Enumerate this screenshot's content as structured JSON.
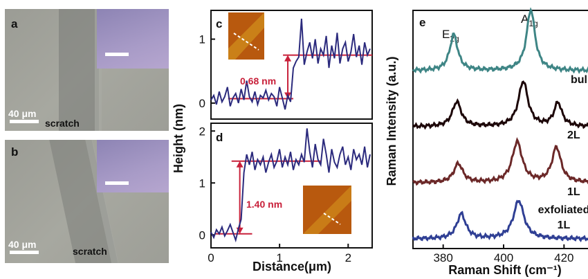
{
  "panel_a": {
    "label": "a",
    "scalebar": "40 μm",
    "caption": "scratch"
  },
  "panel_b": {
    "label": "b",
    "scalebar": "40 μm",
    "caption": "scratch"
  },
  "chart_data": [
    {
      "type": "line",
      "panel": "c",
      "ylabel": "Height (nm)",
      "xlim": [
        0,
        2.35
      ],
      "ylim": [
        -0.25,
        1.45
      ],
      "yticks": [
        0,
        1
      ],
      "annotation": "0.68 nm",
      "levels": [
        0.07,
        0.75
      ],
      "series_color": "#2b2a7d",
      "x": [
        0.0,
        0.04,
        0.08,
        0.12,
        0.16,
        0.2,
        0.24,
        0.28,
        0.32,
        0.36,
        0.4,
        0.44,
        0.48,
        0.52,
        0.56,
        0.6,
        0.64,
        0.68,
        0.72,
        0.76,
        0.8,
        0.84,
        0.88,
        0.92,
        0.96,
        1.0,
        1.04,
        1.08,
        1.12,
        1.16,
        1.2,
        1.24,
        1.28,
        1.32,
        1.36,
        1.4,
        1.44,
        1.48,
        1.52,
        1.56,
        1.6,
        1.64,
        1.68,
        1.72,
        1.76,
        1.8,
        1.84,
        1.88,
        1.92,
        1.96,
        2.0,
        2.04,
        2.08,
        2.12,
        2.16,
        2.2,
        2.24,
        2.28,
        2.32
      ],
      "y": [
        0.05,
        0.12,
        -0.02,
        0.18,
        0.02,
        0.1,
        0.25,
        -0.05,
        0.08,
        0.15,
        0.0,
        0.22,
        0.05,
        0.35,
        0.1,
        0.02,
        0.18,
        -0.02,
        0.12,
        0.08,
        0.2,
        0.05,
        0.15,
        0.1,
        -0.05,
        0.25,
        0.08,
        -0.1,
        0.12,
        0.02,
        0.55,
        0.65,
        0.72,
        1.32,
        0.6,
        0.8,
        0.95,
        0.7,
        1.0,
        0.62,
        0.85,
        0.75,
        1.05,
        0.55,
        0.9,
        0.7,
        1.1,
        0.62,
        0.85,
        0.95,
        0.65,
        0.8,
        1.08,
        0.72,
        0.9,
        0.6,
        0.95,
        0.75,
        0.85
      ]
    },
    {
      "type": "line",
      "panel": "d",
      "ylabel": "Height (nm)",
      "xlabel": "Distance(μm)",
      "xlim": [
        0,
        2.35
      ],
      "ylim": [
        -0.25,
        2.15
      ],
      "xticks": [
        0,
        1,
        2
      ],
      "yticks": [
        0,
        1,
        2
      ],
      "annotation": "1.40 nm",
      "levels": [
        0.02,
        1.42
      ],
      "series_color": "#2b2a7d",
      "x": [
        0.0,
        0.04,
        0.08,
        0.12,
        0.16,
        0.2,
        0.24,
        0.28,
        0.32,
        0.36,
        0.4,
        0.44,
        0.48,
        0.52,
        0.56,
        0.6,
        0.64,
        0.68,
        0.72,
        0.76,
        0.8,
        0.84,
        0.88,
        0.92,
        0.96,
        1.0,
        1.04,
        1.08,
        1.12,
        1.16,
        1.2,
        1.24,
        1.28,
        1.32,
        1.36,
        1.4,
        1.44,
        1.48,
        1.52,
        1.56,
        1.6,
        1.64,
        1.68,
        1.72,
        1.76,
        1.8,
        1.84,
        1.88,
        1.92,
        1.96,
        2.0,
        2.04,
        2.08,
        2.12,
        2.16,
        2.2,
        2.24,
        2.28,
        2.32
      ],
      "y": [
        0.05,
        -0.05,
        0.1,
        0.02,
        0.15,
        -0.02,
        0.08,
        0.2,
        0.05,
        -0.1,
        0.12,
        0.3,
        1.2,
        1.55,
        1.35,
        1.6,
        1.25,
        1.45,
        1.35,
        1.5,
        1.2,
        1.4,
        1.55,
        1.3,
        1.42,
        1.65,
        1.3,
        1.5,
        1.35,
        1.6,
        1.25,
        1.45,
        1.35,
        1.55,
        1.4,
        2.05,
        1.6,
        1.3,
        1.75,
        1.45,
        1.35,
        1.85,
        1.55,
        1.2,
        1.65,
        1.4,
        1.3,
        1.55,
        1.7,
        1.35,
        1.5,
        1.25,
        1.65,
        1.45,
        1.55,
        1.35,
        1.7,
        1.3,
        1.55
      ]
    },
    {
      "type": "line",
      "panel": "e",
      "ylabel": "Raman Intensity (a.u.)",
      "xlabel": "Raman Shift (cm⁻¹)",
      "xlim": [
        370,
        430
      ],
      "xticks": [
        380,
        400,
        420
      ],
      "peak_labels": {
        "e2g": "E2g",
        "a1g": "A1g"
      },
      "series": [
        {
          "name": "bulk",
          "color": "#3e8585",
          "offset": 3.0,
          "peaks": [
            [
              383.5,
              0.8,
              1.6
            ],
            [
              409.0,
              1.35,
              1.7
            ]
          ]
        },
        {
          "name": "2L",
          "color": "#1c0608",
          "offset": 2.0,
          "peaks": [
            [
              384.5,
              0.55,
              1.8
            ],
            [
              406.5,
              1.0,
              1.9
            ],
            [
              418.0,
              0.52,
              1.6
            ]
          ]
        },
        {
          "name": "1L",
          "color": "#6b2828",
          "offset": 1.0,
          "peaks": [
            [
              385.0,
              0.42,
              1.8
            ],
            [
              404.5,
              0.9,
              2.0
            ],
            [
              417.5,
              0.78,
              1.8
            ]
          ]
        },
        {
          "name": "exfoliated 1L",
          "color": "#2f3f94",
          "offset": 0.0,
          "peaks": [
            [
              386.0,
              0.55,
              1.8
            ],
            [
              405.0,
              0.85,
              2.1
            ]
          ]
        }
      ]
    }
  ]
}
